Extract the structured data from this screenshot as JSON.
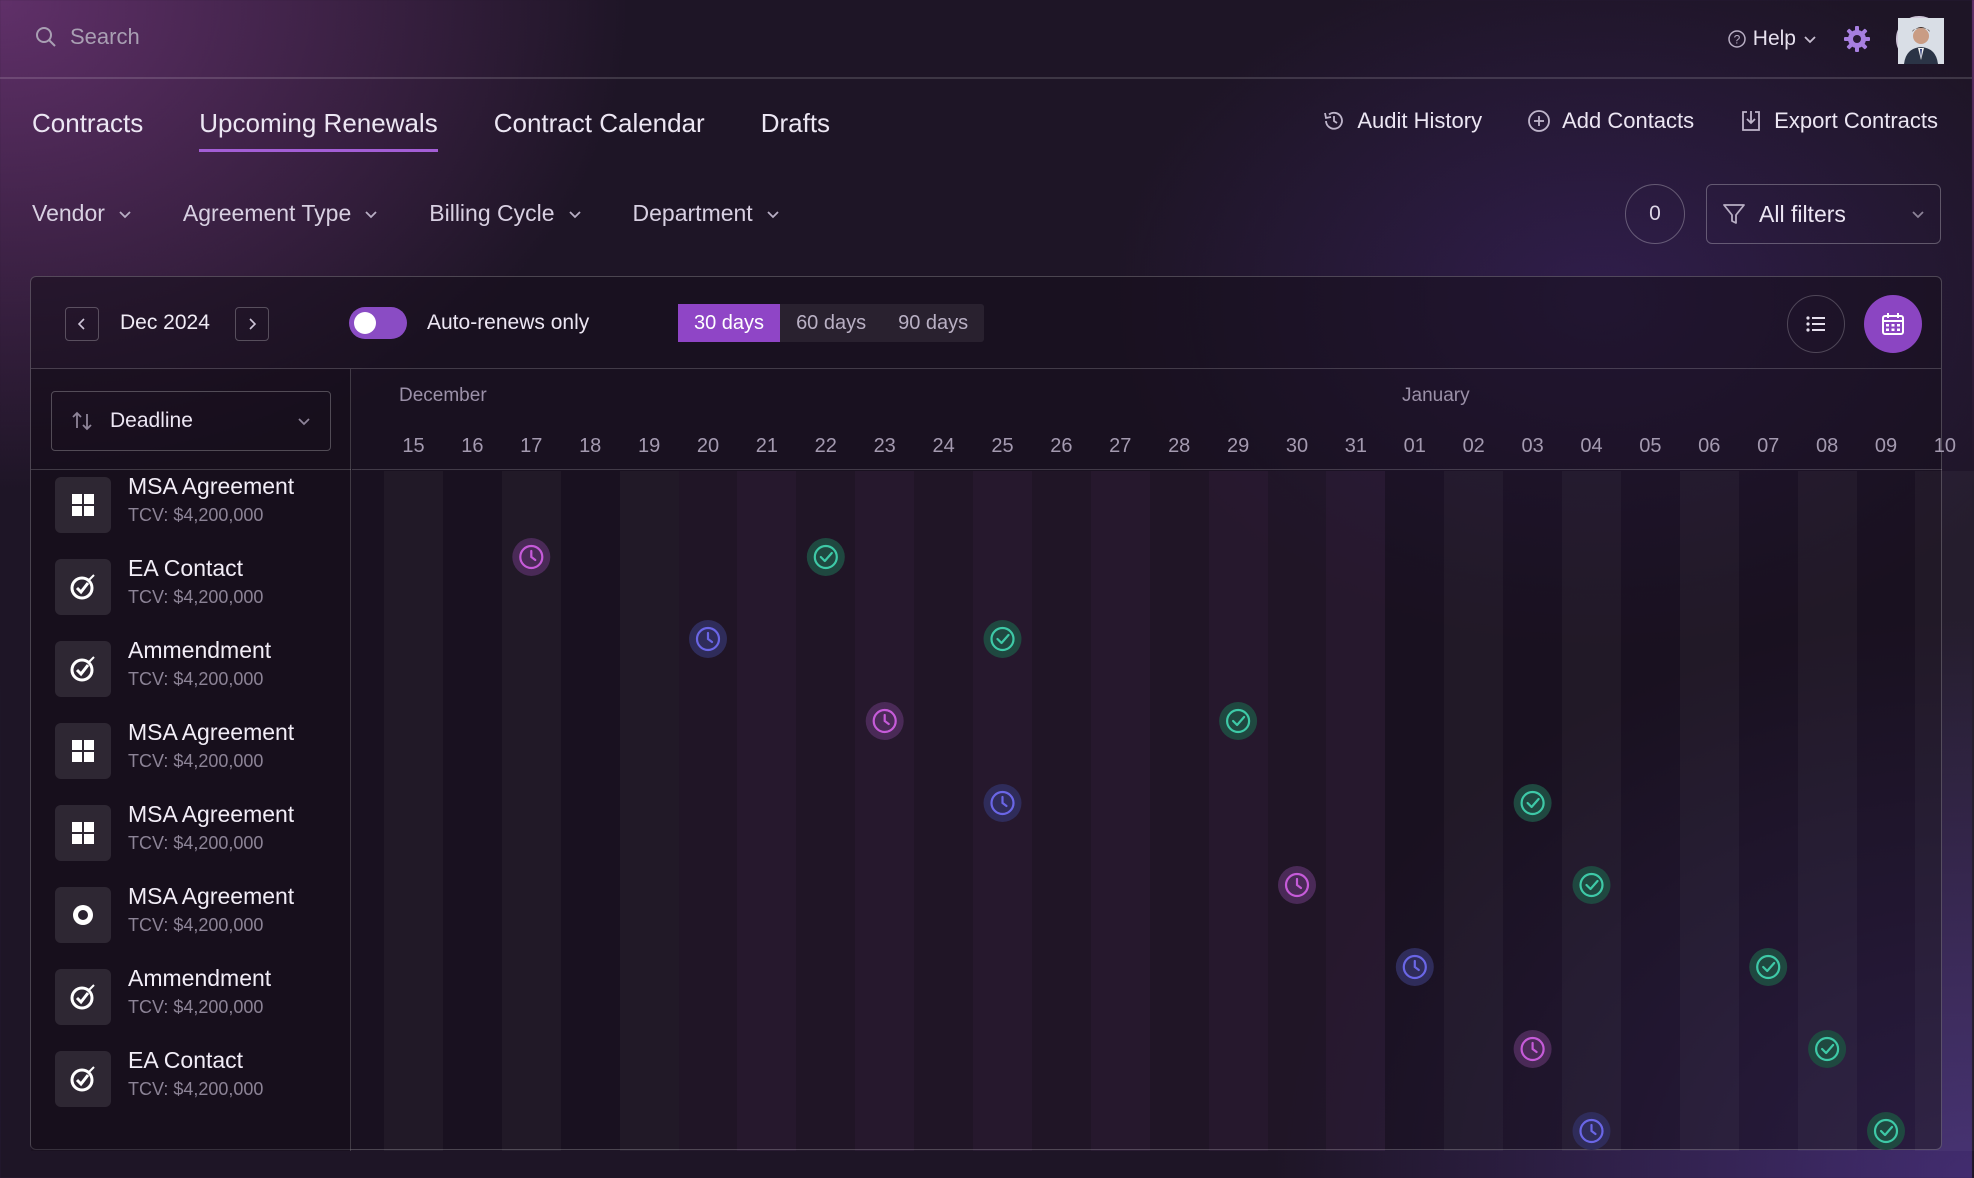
{
  "search": {
    "placeholder": "Search",
    "icon": "search-icon"
  },
  "header": {
    "help_label": "Help",
    "settings_icon": "gear-icon"
  },
  "tabs": [
    {
      "label": "Contracts",
      "active": false
    },
    {
      "label": "Upcoming Renewals",
      "active": true
    },
    {
      "label": "Contract Calendar",
      "active": false
    },
    {
      "label": "Drafts",
      "active": false
    }
  ],
  "actions": [
    {
      "label": "Audit History",
      "icon": "history-icon"
    },
    {
      "label": "Add Contacts",
      "icon": "plus-circle-icon"
    },
    {
      "label": "Export Contracts",
      "icon": "export-icon"
    }
  ],
  "filters": [
    "Vendor",
    "Agreement Type",
    "Billing Cycle",
    "Department"
  ],
  "filter_count": "0",
  "all_filters_label": "All filters",
  "toolbar": {
    "month": "Dec 2024",
    "auto_renew_label": "Auto-renews only",
    "auto_renew_on": true,
    "ranges": [
      "30 days",
      "60 days",
      "90 days"
    ],
    "selected_range": "30 days"
  },
  "sort": {
    "label": "Deadline"
  },
  "timeline": {
    "months": [
      {
        "label": "December"
      },
      {
        "label": "January"
      }
    ],
    "days": [
      "15",
      "16",
      "17",
      "18",
      "19",
      "20",
      "21",
      "22",
      "23",
      "24",
      "25",
      "26",
      "27",
      "28",
      "29",
      "30",
      "31",
      "01",
      "02",
      "03",
      "04",
      "05",
      "06",
      "07",
      "08",
      "09",
      "10"
    ]
  },
  "contracts": [
    {
      "name": "MSA Agreement",
      "tcv": "TCV: $4,200,000",
      "icon": "windows-icon",
      "deadline_day": "17",
      "renewal_day": "22",
      "line": "yellow-pink"
    },
    {
      "name": "EA Contact",
      "tcv": "TCV: $4,200,000",
      "icon": "target-check-icon",
      "deadline_day": "20",
      "renewal_day": "25",
      "line": "pink-blue"
    },
    {
      "name": "Ammendment",
      "tcv": "TCV: $4,200,000",
      "icon": "target-check-icon",
      "deadline_day": "23",
      "renewal_day": "29",
      "line": "yellow-pink"
    },
    {
      "name": "MSA Agreement",
      "tcv": "TCV: $4,200,000",
      "icon": "windows-icon",
      "deadline_day": "25",
      "renewal_day": "03",
      "line": "pink-blue"
    },
    {
      "name": "MSA Agreement",
      "tcv": "TCV: $4,200,000",
      "icon": "windows-icon",
      "deadline_day": "30",
      "renewal_day": "04",
      "line": "yellow-pink"
    },
    {
      "name": "MSA Agreement",
      "tcv": "TCV: $4,200,000",
      "icon": "circle-icon",
      "deadline_day": "01",
      "renewal_day": "07",
      "line": "pink-blue"
    },
    {
      "name": "Ammendment",
      "tcv": "TCV: $4,200,000",
      "icon": "target-check-icon",
      "deadline_day": "03",
      "renewal_day": "08",
      "line": "yellow-pink"
    },
    {
      "name": "EA Contact",
      "tcv": "TCV: $4,200,000",
      "icon": "target-check-icon",
      "deadline_day": "04",
      "renewal_day": "09",
      "line": "pink-blue"
    }
  ],
  "colors": {
    "accent": "#8f45c6",
    "renewal": "#3ec9a7",
    "deadline_pink": "#c65bd9",
    "deadline_blue": "#6a66e6",
    "line_yellow": "#f2c45a",
    "line_pink": "#e15fd3",
    "line_blue": "#5d62e0"
  }
}
